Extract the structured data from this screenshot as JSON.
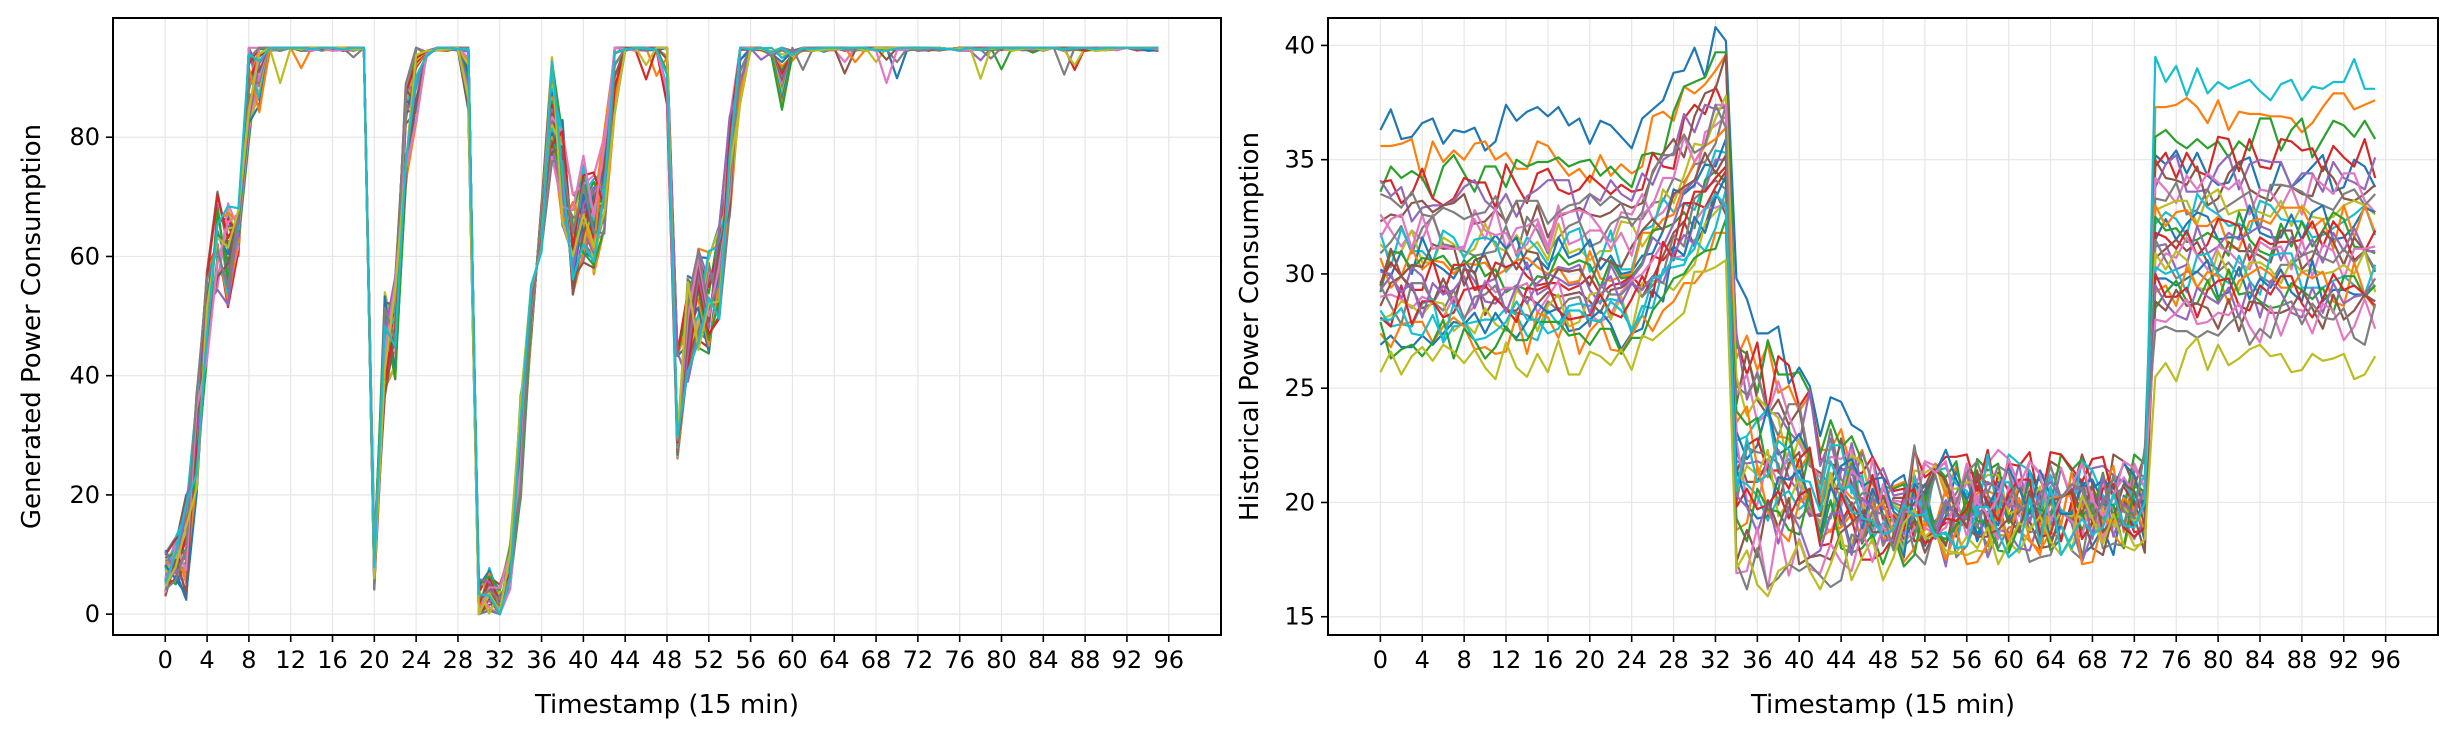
{
  "chart_data": [
    {
      "type": "line",
      "title": "",
      "xlabel": "Timestamp (15 min)",
      "ylabel": "Generated Power Consumption",
      "xlim": [
        -5,
        101
      ],
      "ylim": [
        -3.5,
        100
      ],
      "xticks": [
        0,
        4,
        8,
        12,
        16,
        20,
        24,
        28,
        32,
        36,
        40,
        44,
        48,
        52,
        56,
        60,
        64,
        68,
        72,
        76,
        80,
        84,
        88,
        92,
        96
      ],
      "yticks": [
        0,
        20,
        40,
        60,
        80
      ],
      "grid": true,
      "legend": "none",
      "n_series": 30,
      "x": [
        0,
        1,
        2,
        3,
        4,
        5,
        6,
        7,
        8,
        9,
        10,
        11,
        12,
        13,
        14,
        15,
        16,
        17,
        18,
        19,
        20,
        21,
        22,
        23,
        24,
        25,
        26,
        27,
        28,
        29,
        30,
        31,
        32,
        33,
        34,
        35,
        36,
        37,
        38,
        39,
        40,
        41,
        42,
        43,
        44,
        45,
        46,
        47,
        48,
        49,
        50,
        51,
        52,
        53,
        54,
        55,
        56,
        57,
        58,
        59,
        60,
        61,
        62,
        63,
        64,
        65,
        66,
        67,
        68,
        69,
        70,
        71,
        72,
        73,
        74,
        75,
        76,
        77,
        78,
        79,
        80,
        81,
        82,
        83,
        84,
        85,
        86,
        87,
        88,
        89,
        90,
        91,
        92,
        93,
        94,
        95
      ],
      "base": [
        7,
        9,
        11,
        28,
        50,
        62,
        60,
        66,
        88,
        93,
        95,
        95,
        95,
        95,
        95,
        95,
        95,
        95,
        95,
        95,
        8,
        45,
        48,
        80,
        91,
        94,
        95,
        95,
        95,
        93,
        2,
        4,
        1,
        8,
        28,
        50,
        68,
        85,
        74,
        62,
        68,
        66,
        72,
        92,
        95,
        95,
        95,
        95,
        93,
        35,
        48,
        53,
        52,
        58,
        75,
        93,
        95,
        95,
        94,
        93,
        94,
        95,
        95,
        95,
        95,
        95,
        95,
        95,
        95,
        95,
        95,
        95,
        95,
        95,
        95,
        95,
        95,
        95,
        95,
        95,
        95,
        95,
        95,
        95,
        95,
        95,
        95,
        95,
        95,
        95,
        95,
        95,
        95,
        95,
        95,
        95
      ]
    },
    {
      "type": "line",
      "title": "",
      "xlabel": "Timestamp (15 min)",
      "ylabel": "Historical Power Consumption",
      "xlim": [
        -5,
        101
      ],
      "ylim": [
        14.2,
        41.2
      ],
      "xticks": [
        0,
        4,
        8,
        12,
        16,
        20,
        24,
        28,
        32,
        36,
        40,
        44,
        48,
        52,
        56,
        60,
        64,
        68,
        72,
        76,
        80,
        84,
        88,
        92,
        96
      ],
      "yticks": [
        15,
        20,
        25,
        30,
        35,
        40
      ],
      "grid": true,
      "legend": "none",
      "n_series": 30,
      "x": [
        0,
        1,
        2,
        3,
        4,
        5,
        6,
        7,
        8,
        9,
        10,
        11,
        12,
        13,
        14,
        15,
        16,
        17,
        18,
        19,
        20,
        21,
        22,
        23,
        24,
        25,
        26,
        27,
        28,
        29,
        30,
        31,
        32,
        33,
        34,
        35,
        36,
        37,
        38,
        39,
        40,
        41,
        42,
        43,
        44,
        45,
        46,
        47,
        48,
        49,
        50,
        51,
        52,
        53,
        54,
        55,
        56,
        57,
        58,
        59,
        60,
        61,
        62,
        63,
        64,
        65,
        66,
        67,
        68,
        69,
        70,
        71,
        72,
        73,
        74,
        75,
        76,
        77,
        78,
        79,
        80,
        81,
        82,
        83,
        84,
        85,
        86,
        87,
        88,
        89,
        90,
        91,
        92,
        93,
        94,
        95
      ],
      "levels_start": [
        36.4,
        35.0,
        34.2,
        33.8,
        33.2,
        32.6,
        32.1,
        31.7,
        31.3,
        31.0,
        30.7,
        30.4,
        30.1,
        29.8,
        29.5,
        29.2,
        28.9,
        28.6,
        28.3,
        28.0,
        27.7,
        27.4,
        27.1,
        28.6,
        29.0,
        30.4,
        31.8,
        32.9,
        26.3,
        27.9
      ],
      "levels_drop": [
        28.6,
        27.5,
        27.2,
        26.8,
        26.2,
        25.6,
        25.2,
        24.8,
        24.4,
        24.0,
        23.6,
        23.2,
        22.9,
        22.6,
        22.3,
        22.0,
        21.7,
        21.4,
        21.1,
        20.8,
        20.5,
        20.2,
        19.9,
        19.6,
        19.3,
        18.8,
        17.5,
        17.2,
        16.2,
        22.0
      ],
      "levels_end": [
        34.5,
        37.0,
        36.0,
        35.0,
        34.5,
        34.0,
        33.5,
        33.0,
        32.8,
        32.5,
        32.2,
        32.0,
        31.8,
        31.5,
        31.2,
        31.0,
        30.8,
        30.5,
        30.2,
        30.0,
        29.8,
        29.5,
        29.2,
        29.0,
        28.8,
        28.5,
        28.0,
        27.8,
        26.2,
        38.5
      ]
    }
  ],
  "palette": [
    "#1f77b4",
    "#ff7f0e",
    "#2ca02c",
    "#d62728",
    "#9467bd",
    "#8c564b",
    "#e377c2",
    "#7f7f7f",
    "#bcbd22",
    "#17becf"
  ]
}
